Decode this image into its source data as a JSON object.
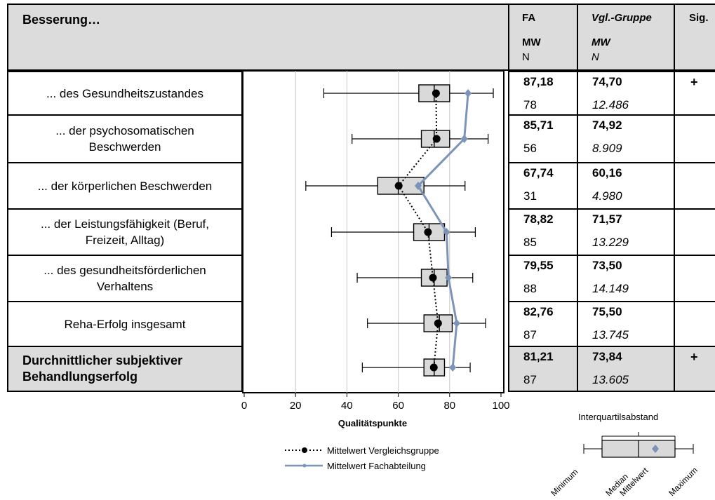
{
  "header": {
    "title": "Besserung…",
    "fa_title": "FA",
    "fa_mw": "MW",
    "fa_n": "N",
    "vgl_title": "Vgl.-Gruppe",
    "vgl_mw": "MW",
    "vgl_n": "N",
    "sig_title": "Sig."
  },
  "rows": [
    {
      "label": "... des Gesundheitszustandes",
      "fa_mw": "87,18",
      "fa_n": "78",
      "vgl_mw": "74,70",
      "vgl_n": "12.486",
      "sig": "+"
    },
    {
      "label": "... der psychosomatischen Beschwerden",
      "fa_mw": "85,71",
      "fa_n": "56",
      "vgl_mw": "74,92",
      "vgl_n": "8.909",
      "sig": ""
    },
    {
      "label": "... der körperlichen Beschwerden",
      "fa_mw": "67,74",
      "fa_n": "31",
      "vgl_mw": "60,16",
      "vgl_n": "4.980",
      "sig": ""
    },
    {
      "label": "... der Leistungsfähigkeit (Beruf, Freizeit, Alltag)",
      "fa_mw": "78,82",
      "fa_n": "85",
      "vgl_mw": "71,57",
      "vgl_n": "13.229",
      "sig": ""
    },
    {
      "label": "... des gesundheitsförderlichen Verhaltens",
      "fa_mw": "79,55",
      "fa_n": "88",
      "vgl_mw": "73,50",
      "vgl_n": "14.149",
      "sig": ""
    },
    {
      "label": "Reha-Erfolg insgesamt",
      "fa_mw": "82,76",
      "fa_n": "87",
      "vgl_mw": "75,50",
      "vgl_n": "13.745",
      "sig": ""
    },
    {
      "label": "Durchnittlicher subjektiver Behandlungserfolg",
      "fa_mw": "81,21",
      "fa_n": "87",
      "vgl_mw": "73,84",
      "vgl_n": "13.605",
      "sig": "+"
    }
  ],
  "legend": {
    "vergleich": "Mittelwert Vergleichsgruppe",
    "fach": "Mittelwert Fachabteilung",
    "iqr": "Interquartilsabstand",
    "min": "Minimum",
    "median": "Median",
    "mittelwert": "Mittelwert",
    "max": "Maximum"
  },
  "colors": {
    "header_bg": "#dcdcdc",
    "fach_line": "#7b94b8",
    "box_fill": "#d9d9d9",
    "grid": "#c8c8c8"
  },
  "chart_data": {
    "type": "box",
    "xlabel": "Qualitätspunkte",
    "xlim": [
      0,
      100
    ],
    "xticks": [
      0,
      20,
      40,
      60,
      80,
      100
    ],
    "grid": true,
    "categories": [
      "... des Gesundheitszustandes",
      "... der psychosomatischen Beschwerden",
      "... der körperlichen Beschwerden",
      "... der Leistungsfähigkeit (Beruf, Freizeit, Alltag)",
      "... des gesundheitsförderlichen Verhaltens",
      "Reha-Erfolg insgesamt",
      "Durchnittlicher subjektiver Behandlungserfolg"
    ],
    "boxes": [
      {
        "min": 31,
        "q1": 68,
        "median": 74,
        "q3": 80,
        "max": 97
      },
      {
        "min": 42,
        "q1": 69,
        "median": 74,
        "q3": 80,
        "max": 95
      },
      {
        "min": 24,
        "q1": 52,
        "median": 60,
        "q3": 70,
        "max": 86
      },
      {
        "min": 34,
        "q1": 66,
        "median": 72,
        "q3": 78,
        "max": 90
      },
      {
        "min": 44,
        "q1": 69,
        "median": 74,
        "q3": 79,
        "max": 89
      },
      {
        "min": 48,
        "q1": 70,
        "median": 76,
        "q3": 81,
        "max": 94
      },
      {
        "min": 46,
        "q1": 70,
        "median": 74,
        "q3": 78,
        "max": 88
      }
    ],
    "series": [
      {
        "name": "Mittelwert Vergleichsgruppe",
        "values": [
          74.7,
          74.92,
          60.16,
          71.57,
          73.5,
          75.5,
          73.84
        ]
      },
      {
        "name": "Mittelwert Fachabteilung",
        "values": [
          87.18,
          85.71,
          67.74,
          78.82,
          79.55,
          82.76,
          81.21
        ]
      }
    ]
  }
}
